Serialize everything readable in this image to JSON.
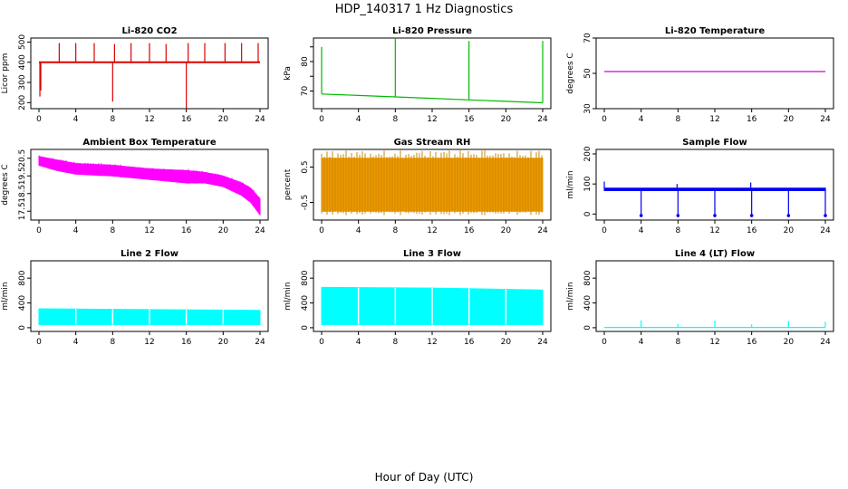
{
  "figure": {
    "title": "HDP_140317  1 Hz Diagnostics",
    "xlabel": "Hour of Day (UTC)"
  },
  "chart_data": [
    {
      "type": "line",
      "title": "Li-820 CO2",
      "ylabel": "Licor ppm",
      "color": "#dd0000",
      "xlim": [
        0,
        24
      ],
      "ylim": [
        170,
        520
      ],
      "xticks": [
        0,
        4,
        8,
        12,
        16,
        20,
        24
      ],
      "yticks": [
        200,
        300,
        400,
        500
      ],
      "ytick_labels": [
        "200",
        "300",
        "400",
        "500"
      ],
      "band": [
        [
          0,
          400,
          400
        ],
        [
          24,
          400,
          400
        ]
      ],
      "spikes": [
        [
          0.1,
          230
        ],
        [
          0.2,
          260
        ],
        [
          2.2,
          495
        ],
        [
          4,
          495
        ],
        [
          6,
          495
        ],
        [
          8,
          205
        ],
        [
          8.2,
          490
        ],
        [
          10,
          495
        ],
        [
          12,
          495
        ],
        [
          13.8,
          490
        ],
        [
          16,
          145
        ],
        [
          16.2,
          495
        ],
        [
          18,
          495
        ],
        [
          20.2,
          495
        ],
        [
          22,
          495
        ],
        [
          23.8,
          495
        ]
      ]
    },
    {
      "type": "line",
      "title": "Li-820 Pressure",
      "ylabel": "kPa",
      "color": "#00bb00",
      "xlim": [
        0,
        24
      ],
      "ylim": [
        64,
        88
      ],
      "xticks": [
        0,
        4,
        8,
        12,
        16,
        20,
        24
      ],
      "yticks": [
        70,
        75,
        80,
        85
      ],
      "ytick_labels": [
        "70",
        "",
        "80",
        ""
      ],
      "band": [
        [
          0,
          69,
          69
        ],
        [
          4,
          68.5,
          68.5
        ],
        [
          8,
          68,
          68
        ],
        [
          12,
          67.5,
          67.5
        ],
        [
          16,
          67,
          67
        ],
        [
          20,
          66.5,
          66.5
        ],
        [
          24,
          66,
          66
        ]
      ],
      "spikes": [
        [
          0,
          85
        ],
        [
          8,
          88
        ],
        [
          16,
          87
        ],
        [
          24,
          87
        ]
      ]
    },
    {
      "type": "line",
      "title": "Li-820 Temperature",
      "ylabel": "degrees C",
      "color": "#cc00cc",
      "xlim": [
        0,
        24
      ],
      "ylim": [
        30,
        70
      ],
      "xticks": [
        0,
        4,
        8,
        12,
        16,
        20,
        24
      ],
      "yticks": [
        30,
        50,
        70
      ],
      "ytick_labels": [
        "30",
        "50",
        "70"
      ],
      "band": [
        [
          0,
          51,
          51
        ],
        [
          24,
          51,
          51
        ]
      ],
      "spikes": []
    },
    {
      "type": "area",
      "title": "Ambient Box Temperature",
      "ylabel": "degrees C",
      "color": "#ff00ff",
      "xlim": [
        0,
        24
      ],
      "ylim": [
        17,
        21
      ],
      "xticks": [
        0,
        4,
        8,
        12,
        16,
        20,
        24
      ],
      "yticks": [
        17.5,
        18.5,
        19.5,
        20.5
      ],
      "ytick_labels": [
        "17.5",
        "18.5",
        "19.5",
        "20.5"
      ],
      "band": [
        [
          0,
          20.1,
          20.6
        ],
        [
          2,
          19.8,
          20.4
        ],
        [
          4,
          19.6,
          20.2
        ],
        [
          8,
          19.5,
          20.1
        ],
        [
          12,
          19.3,
          19.9
        ],
        [
          16,
          19.1,
          19.8
        ],
        [
          18,
          19.1,
          19.7
        ],
        [
          20,
          18.9,
          19.5
        ],
        [
          22,
          18.4,
          19.1
        ],
        [
          23,
          18.0,
          18.8
        ],
        [
          24,
          17.3,
          18.2
        ]
      ],
      "spikes": []
    },
    {
      "type": "area",
      "title": "Gas Stream RH",
      "ylabel": "percent",
      "color": "#ee9900",
      "xlim": [
        0,
        24
      ],
      "ylim": [
        -1.0,
        1.0
      ],
      "xticks": [
        0,
        4,
        8,
        12,
        16,
        20,
        24
      ],
      "yticks": [
        -0.5,
        0.5
      ],
      "ytick_labels": [
        "-0.5",
        "0.5"
      ],
      "band": [
        [
          0,
          -0.75,
          0.75
        ],
        [
          24,
          -0.75,
          0.75
        ]
      ],
      "spikes": []
    },
    {
      "type": "line",
      "title": "Sample Flow",
      "ylabel": "ml/min",
      "color": "#0000ee",
      "xlim": [
        0,
        24
      ],
      "ylim": [
        -20,
        215
      ],
      "xticks": [
        0,
        4,
        8,
        12,
        16,
        20,
        24
      ],
      "yticks": [
        0,
        100,
        200
      ],
      "ytick_labels": [
        "0",
        "100",
        "200"
      ],
      "band": [
        [
          0,
          78,
          86
        ],
        [
          24,
          78,
          86
        ]
      ],
      "spikes": [
        [
          0,
          108
        ],
        [
          4,
          -5
        ],
        [
          7.9,
          100
        ],
        [
          8,
          -5
        ],
        [
          12,
          -5
        ],
        [
          15.9,
          105
        ],
        [
          16,
          -5
        ],
        [
          20,
          -5
        ],
        [
          24,
          -5
        ]
      ]
    },
    {
      "type": "area",
      "title": "Line 2 Flow",
      "ylabel": "ml/min",
      "color": "#00ffff",
      "xlim": [
        0,
        24
      ],
      "ylim": [
        -60,
        1080
      ],
      "xticks": [
        0,
        4,
        8,
        12,
        16,
        20,
        24
      ],
      "yticks": [
        0,
        400,
        800
      ],
      "ytick_labels": [
        "0",
        "400",
        "800"
      ],
      "band": [
        [
          0,
          50,
          305
        ],
        [
          24,
          50,
          280
        ]
      ],
      "spikes": []
    },
    {
      "type": "area",
      "title": "Line 3 Flow",
      "ylabel": "ml/min",
      "color": "#00ffff",
      "xlim": [
        0,
        24
      ],
      "ylim": [
        -60,
        1080
      ],
      "xticks": [
        0,
        4,
        8,
        12,
        16,
        20,
        24
      ],
      "yticks": [
        0,
        400,
        800
      ],
      "ytick_labels": [
        "0",
        "400",
        "800"
      ],
      "band": [
        [
          0,
          50,
          650
        ],
        [
          12,
          50,
          640
        ],
        [
          24,
          50,
          610
        ]
      ],
      "spikes": []
    },
    {
      "type": "line",
      "title": "Line 4 (LT) Flow",
      "ylabel": "ml/min",
      "color": "#00ffff",
      "xlim": [
        0,
        24
      ],
      "ylim": [
        -60,
        1080
      ],
      "xticks": [
        0,
        4,
        8,
        12,
        16,
        20,
        24
      ],
      "yticks": [
        0,
        400,
        800
      ],
      "ytick_labels": [
        "0",
        "400",
        "800"
      ],
      "band": [
        [
          0,
          5,
          5
        ],
        [
          24,
          5,
          5
        ]
      ],
      "spikes": [
        [
          4,
          120
        ],
        [
          8,
          60
        ],
        [
          12,
          115
        ],
        [
          16,
          55
        ],
        [
          20,
          110
        ],
        [
          24,
          95
        ]
      ]
    }
  ]
}
